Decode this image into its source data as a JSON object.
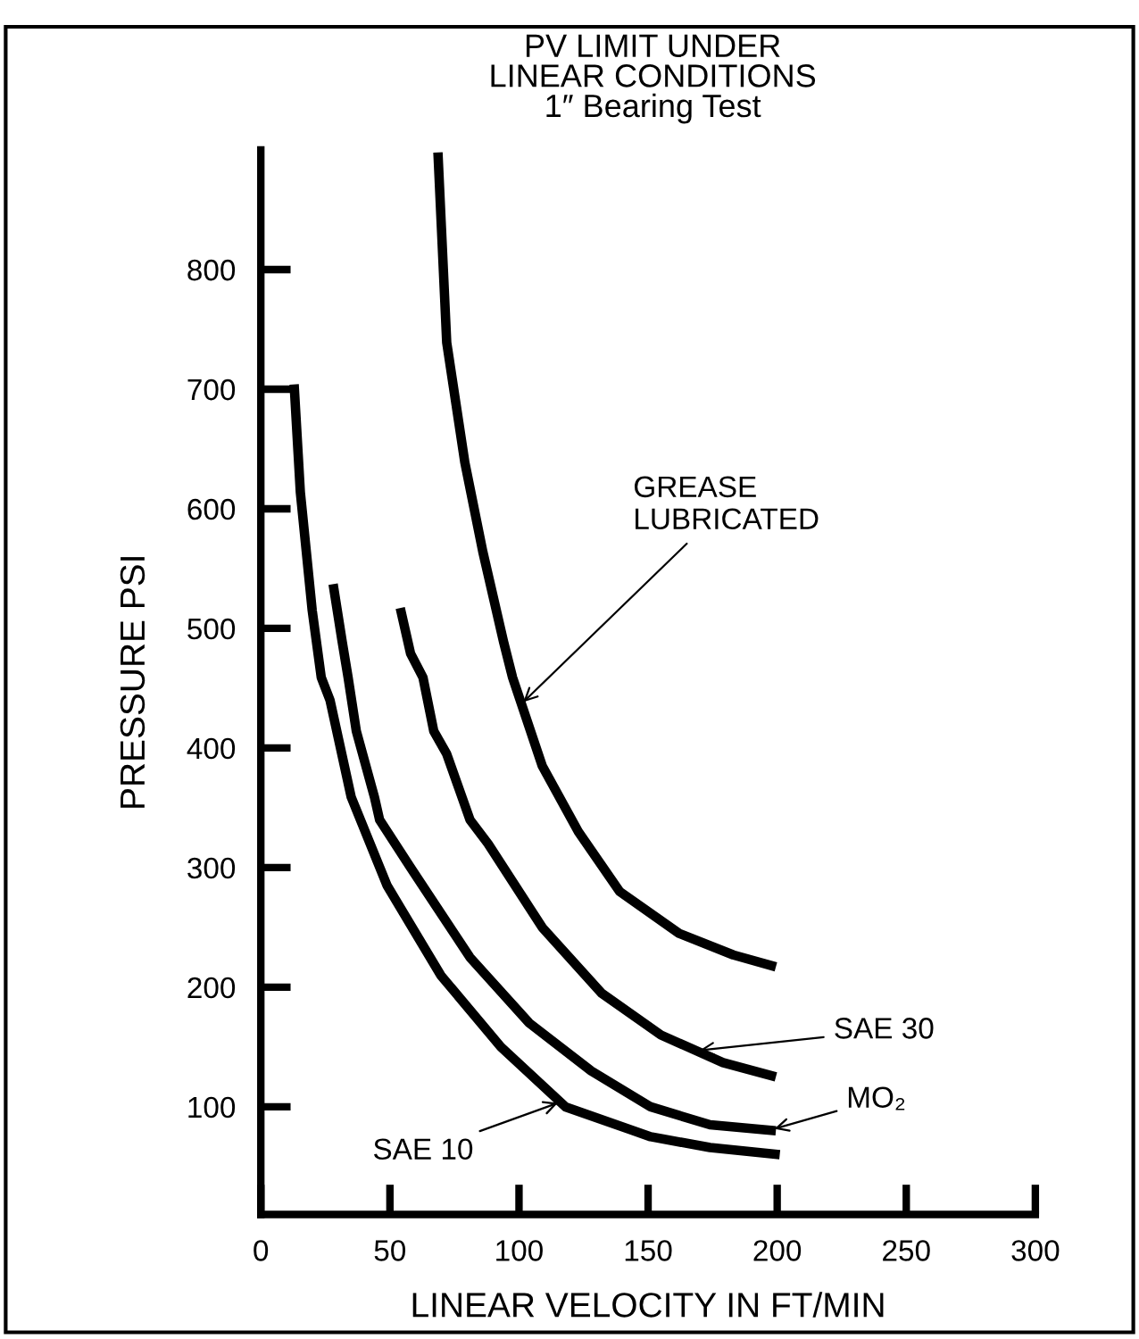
{
  "chart_data": {
    "type": "line",
    "title": "PV LIMIT UNDER\nLINEAR CONDITIONS\n1″ Bearing Test",
    "xlabel": "LINEAR VELOCITY IN FT/MIN",
    "ylabel": "PRESSURE PSI",
    "xlim": [
      0,
      300
    ],
    "ylim": [
      10,
      900
    ],
    "xticks": [
      0,
      50,
      100,
      150,
      200,
      250,
      300
    ],
    "yticks": [
      100,
      200,
      300,
      400,
      500,
      600,
      700,
      800
    ],
    "grid": false,
    "legend": false,
    "marker": "none",
    "line_style": "solid",
    "series": [
      {
        "color": "#000000",
        "x": [
          68.6,
          72,
          79,
          86,
          94,
          97.5,
          109,
          123,
          139,
          162,
          183,
          199.5
        ],
        "values": [
          898,
          739,
          639,
          564,
          489,
          459,
          385,
          330,
          280,
          245,
          227,
          217
        ]
      },
      {
        "color": "#000000",
        "x": [
          54,
          58,
          62.8,
          67,
          72,
          81,
          88,
          109,
          132,
          155,
          179,
          199.5
        ],
        "values": [
          517,
          479,
          459,
          414,
          395,
          340,
          320,
          250,
          195,
          160,
          137,
          125
        ]
      },
      {
        "color": "#000000",
        "x": [
          28,
          31.5,
          33.8,
          37,
          44,
          46,
          58,
          81,
          104,
          128,
          151,
          174,
          199.5
        ],
        "values": [
          537,
          489,
          459,
          414,
          359,
          340,
          300,
          225,
          170,
          130,
          100,
          85,
          80
        ]
      },
      {
        "color": "#000000",
        "x": [
          12.9,
          15.3,
          19.9,
          23.4,
          26.8,
          35,
          48.9,
          69.7,
          93,
          118,
          151,
          174,
          201
        ],
        "values": [
          704,
          614,
          515,
          459,
          440,
          359,
          285,
          210,
          150,
          100,
          75,
          66,
          60
        ]
      }
    ],
    "annotations": [
      {
        "text": "GREASE\nLUBRICATED",
        "x": 101,
        "y": 437
      },
      {
        "text": "SAE 30",
        "x": 169,
        "y": 147
      },
      {
        "text": "MO₂",
        "x": 198,
        "y": 81
      },
      {
        "text": "SAE 10",
        "x": 116,
        "y": 104
      }
    ]
  }
}
